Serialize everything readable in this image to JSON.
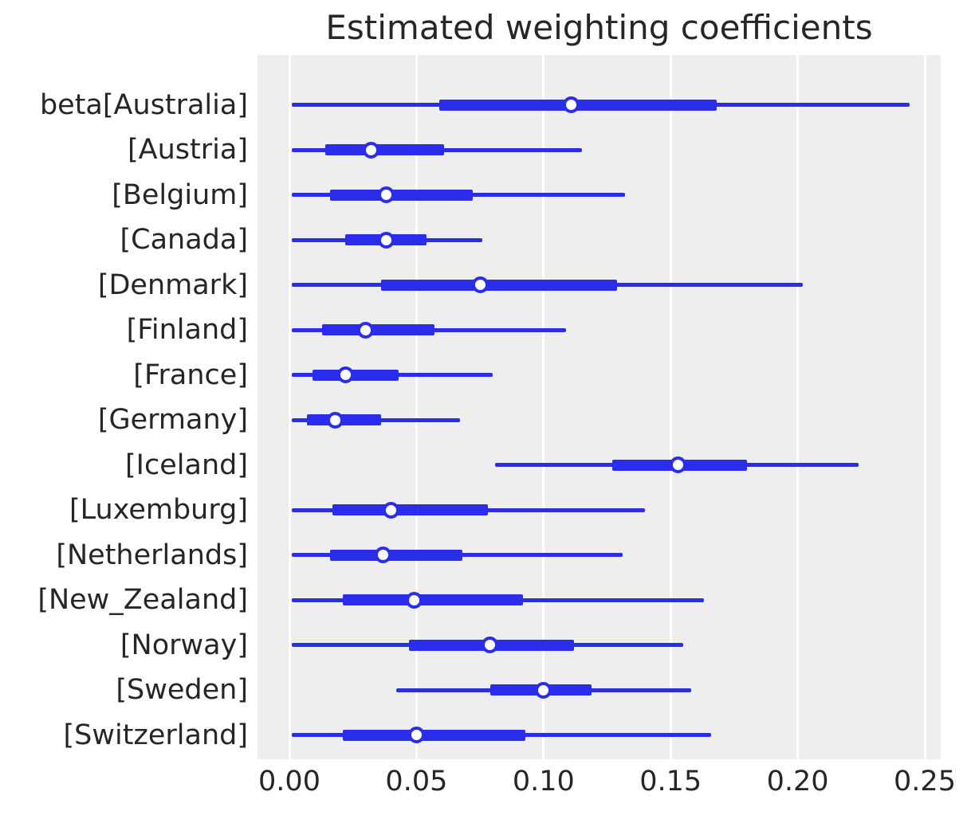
{
  "title": "Estimated weighting coefficients",
  "colors": {
    "line": "#2a2eec",
    "marker_fill": "#ffffff",
    "plot_background": "#eeeeee",
    "gridline": "#ffffff",
    "text": "#262626",
    "page_background": "#ffffff"
  },
  "chart_data": {
    "type": "forest",
    "orientation": "horizontal",
    "title": "Estimated weighting coefficients",
    "xlabel": "",
    "ylabel": "",
    "xlim": [
      0.0,
      0.25
    ],
    "x_ticks": [
      0.0,
      0.05,
      0.1,
      0.15,
      0.2,
      0.25
    ],
    "x_tick_labels": [
      "0.00",
      "0.05",
      "0.10",
      "0.15",
      "0.20",
      "0.25"
    ],
    "grid": "vertical white gridlines on gray panel, no spines",
    "legend_position": "none",
    "marker": "open circle (white fill, blue edge) at point estimate",
    "series_description": "Each row shows a point estimate (open circle), a thick inner credible interval and a thin outer credible interval",
    "rows": [
      {
        "label": "beta[Australia]",
        "point": 0.111,
        "thick_lo": 0.059,
        "thick_hi": 0.168,
        "thin_lo": 0.001,
        "thin_hi": 0.244
      },
      {
        "label": "[Austria]",
        "point": 0.032,
        "thick_lo": 0.014,
        "thick_hi": 0.061,
        "thin_lo": 0.001,
        "thin_hi": 0.115
      },
      {
        "label": "[Belgium]",
        "point": 0.038,
        "thick_lo": 0.016,
        "thick_hi": 0.072,
        "thin_lo": 0.001,
        "thin_hi": 0.132
      },
      {
        "label": "[Canada]",
        "point": 0.038,
        "thick_lo": 0.022,
        "thick_hi": 0.054,
        "thin_lo": 0.001,
        "thin_hi": 0.076
      },
      {
        "label": "[Denmark]",
        "point": 0.075,
        "thick_lo": 0.036,
        "thick_hi": 0.129,
        "thin_lo": 0.001,
        "thin_hi": 0.202
      },
      {
        "label": "[Finland]",
        "point": 0.03,
        "thick_lo": 0.013,
        "thick_hi": 0.057,
        "thin_lo": 0.001,
        "thin_hi": 0.109
      },
      {
        "label": "[France]",
        "point": 0.022,
        "thick_lo": 0.009,
        "thick_hi": 0.043,
        "thin_lo": 0.001,
        "thin_hi": 0.08
      },
      {
        "label": "[Germany]",
        "point": 0.018,
        "thick_lo": 0.007,
        "thick_hi": 0.036,
        "thin_lo": 0.001,
        "thin_hi": 0.067
      },
      {
        "label": "[Iceland]",
        "point": 0.153,
        "thick_lo": 0.127,
        "thick_hi": 0.18,
        "thin_lo": 0.081,
        "thin_hi": 0.224
      },
      {
        "label": "[Luxemburg]",
        "point": 0.04,
        "thick_lo": 0.017,
        "thick_hi": 0.078,
        "thin_lo": 0.001,
        "thin_hi": 0.14
      },
      {
        "label": "[Netherlands]",
        "point": 0.037,
        "thick_lo": 0.016,
        "thick_hi": 0.068,
        "thin_lo": 0.001,
        "thin_hi": 0.131
      },
      {
        "label": "[New_Zealand]",
        "point": 0.049,
        "thick_lo": 0.021,
        "thick_hi": 0.092,
        "thin_lo": 0.001,
        "thin_hi": 0.163
      },
      {
        "label": "[Norway]",
        "point": 0.079,
        "thick_lo": 0.047,
        "thick_hi": 0.112,
        "thin_lo": 0.001,
        "thin_hi": 0.155
      },
      {
        "label": "[Sweden]",
        "point": 0.1,
        "thick_lo": 0.079,
        "thick_hi": 0.119,
        "thin_lo": 0.042,
        "thin_hi": 0.158
      },
      {
        "label": "[Switzerland]",
        "point": 0.05,
        "thick_lo": 0.021,
        "thick_hi": 0.093,
        "thin_lo": 0.001,
        "thin_hi": 0.166
      }
    ]
  }
}
